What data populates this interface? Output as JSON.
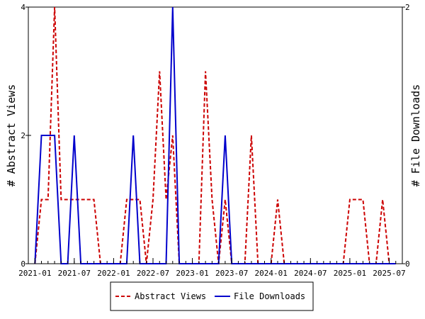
{
  "chart_data": {
    "type": "line",
    "x_start": "2020-12",
    "x_end": "2025-09",
    "x_tick_labels": [
      "2021-01",
      "2021-07",
      "2022-01",
      "2022-07",
      "2023-01",
      "2023-07",
      "2024-01",
      "2024-07",
      "2025-01",
      "2025-07"
    ],
    "y_left": {
      "label": "# Abstract Views",
      "ylim": [
        0,
        4
      ],
      "ticks": [
        "0",
        "2",
        "4"
      ]
    },
    "y_right": {
      "label": "# File Downloads",
      "ylim": [
        0,
        2
      ],
      "ticks": [
        "0",
        "2"
      ]
    },
    "legend_position": "bottom",
    "series": [
      {
        "name": "Abstract Views",
        "axis": "left",
        "color": "#cc0000",
        "style": "dashed",
        "points": [
          [
            "2021-01",
            0
          ],
          [
            "2021-02",
            1
          ],
          [
            "2021-03",
            1
          ],
          [
            "2021-04",
            4
          ],
          [
            "2021-05",
            1
          ],
          [
            "2021-06",
            1
          ],
          [
            "2021-07",
            1
          ],
          [
            "2021-08",
            1
          ],
          [
            "2021-09",
            1
          ],
          [
            "2021-10",
            1
          ],
          [
            "2021-11",
            0
          ],
          [
            "2021-12",
            0
          ],
          [
            "2022-01",
            0
          ],
          [
            "2022-02",
            0
          ],
          [
            "2022-03",
            1
          ],
          [
            "2022-04",
            1
          ],
          [
            "2022-05",
            1
          ],
          [
            "2022-06",
            0
          ],
          [
            "2022-07",
            1
          ],
          [
            "2022-08",
            3
          ],
          [
            "2022-09",
            1
          ],
          [
            "2022-10",
            2
          ],
          [
            "2022-11",
            0
          ],
          [
            "2022-12",
            0
          ],
          [
            "2023-01",
            0
          ],
          [
            "2023-02",
            0
          ],
          [
            "2023-03",
            3
          ],
          [
            "2023-04",
            1
          ],
          [
            "2023-05",
            0
          ],
          [
            "2023-06",
            1
          ],
          [
            "2023-07",
            0
          ],
          [
            "2023-08",
            0
          ],
          [
            "2023-09",
            0
          ],
          [
            "2023-10",
            2
          ],
          [
            "2023-11",
            0
          ],
          [
            "2023-12",
            0
          ],
          [
            "2024-01",
            0
          ],
          [
            "2024-02",
            1
          ],
          [
            "2024-03",
            0
          ],
          [
            "2024-04",
            0
          ],
          [
            "2024-05",
            0
          ],
          [
            "2024-06",
            0
          ],
          [
            "2024-07",
            0
          ],
          [
            "2024-08",
            0
          ],
          [
            "2024-09",
            0
          ],
          [
            "2024-10",
            0
          ],
          [
            "2024-11",
            0
          ],
          [
            "2024-12",
            0
          ],
          [
            "2025-01",
            1
          ],
          [
            "2025-02",
            1
          ],
          [
            "2025-03",
            1
          ],
          [
            "2025-04",
            0
          ],
          [
            "2025-05",
            0
          ],
          [
            "2025-06",
            1
          ],
          [
            "2025-07",
            0
          ],
          [
            "2025-08",
            0
          ]
        ]
      },
      {
        "name": "File Downloads",
        "axis": "right",
        "color": "#0000cc",
        "style": "solid",
        "points": [
          [
            "2021-01",
            0
          ],
          [
            "2021-02",
            1
          ],
          [
            "2021-03",
            1
          ],
          [
            "2021-04",
            1
          ],
          [
            "2021-05",
            0
          ],
          [
            "2021-06",
            0
          ],
          [
            "2021-07",
            1
          ],
          [
            "2021-08",
            0
          ],
          [
            "2021-09",
            0
          ],
          [
            "2021-10",
            0
          ],
          [
            "2021-11",
            0
          ],
          [
            "2021-12",
            0
          ],
          [
            "2022-01",
            0
          ],
          [
            "2022-02",
            0
          ],
          [
            "2022-03",
            0
          ],
          [
            "2022-04",
            1
          ],
          [
            "2022-05",
            0
          ],
          [
            "2022-06",
            0
          ],
          [
            "2022-07",
            0
          ],
          [
            "2022-08",
            0
          ],
          [
            "2022-09",
            0
          ],
          [
            "2022-10",
            2
          ],
          [
            "2022-11",
            0
          ],
          [
            "2022-12",
            0
          ],
          [
            "2023-01",
            0
          ],
          [
            "2023-02",
            0
          ],
          [
            "2023-03",
            0
          ],
          [
            "2023-04",
            0
          ],
          [
            "2023-05",
            0
          ],
          [
            "2023-06",
            1
          ],
          [
            "2023-07",
            0
          ],
          [
            "2023-08",
            0
          ],
          [
            "2023-09",
            0
          ],
          [
            "2023-10",
            0
          ],
          [
            "2023-11",
            0
          ],
          [
            "2023-12",
            0
          ],
          [
            "2024-01",
            0
          ],
          [
            "2024-02",
            0
          ],
          [
            "2024-03",
            0
          ],
          [
            "2024-04",
            0
          ],
          [
            "2024-05",
            0
          ],
          [
            "2024-06",
            0
          ],
          [
            "2024-07",
            0
          ],
          [
            "2024-08",
            0
          ],
          [
            "2024-09",
            0
          ],
          [
            "2024-10",
            0
          ],
          [
            "2024-11",
            0
          ],
          [
            "2024-12",
            0
          ],
          [
            "2025-01",
            0
          ],
          [
            "2025-02",
            0
          ],
          [
            "2025-03",
            0
          ],
          [
            "2025-04",
            0
          ],
          [
            "2025-05",
            0
          ],
          [
            "2025-06",
            0
          ],
          [
            "2025-07",
            0
          ],
          [
            "2025-08",
            0
          ]
        ]
      }
    ]
  }
}
